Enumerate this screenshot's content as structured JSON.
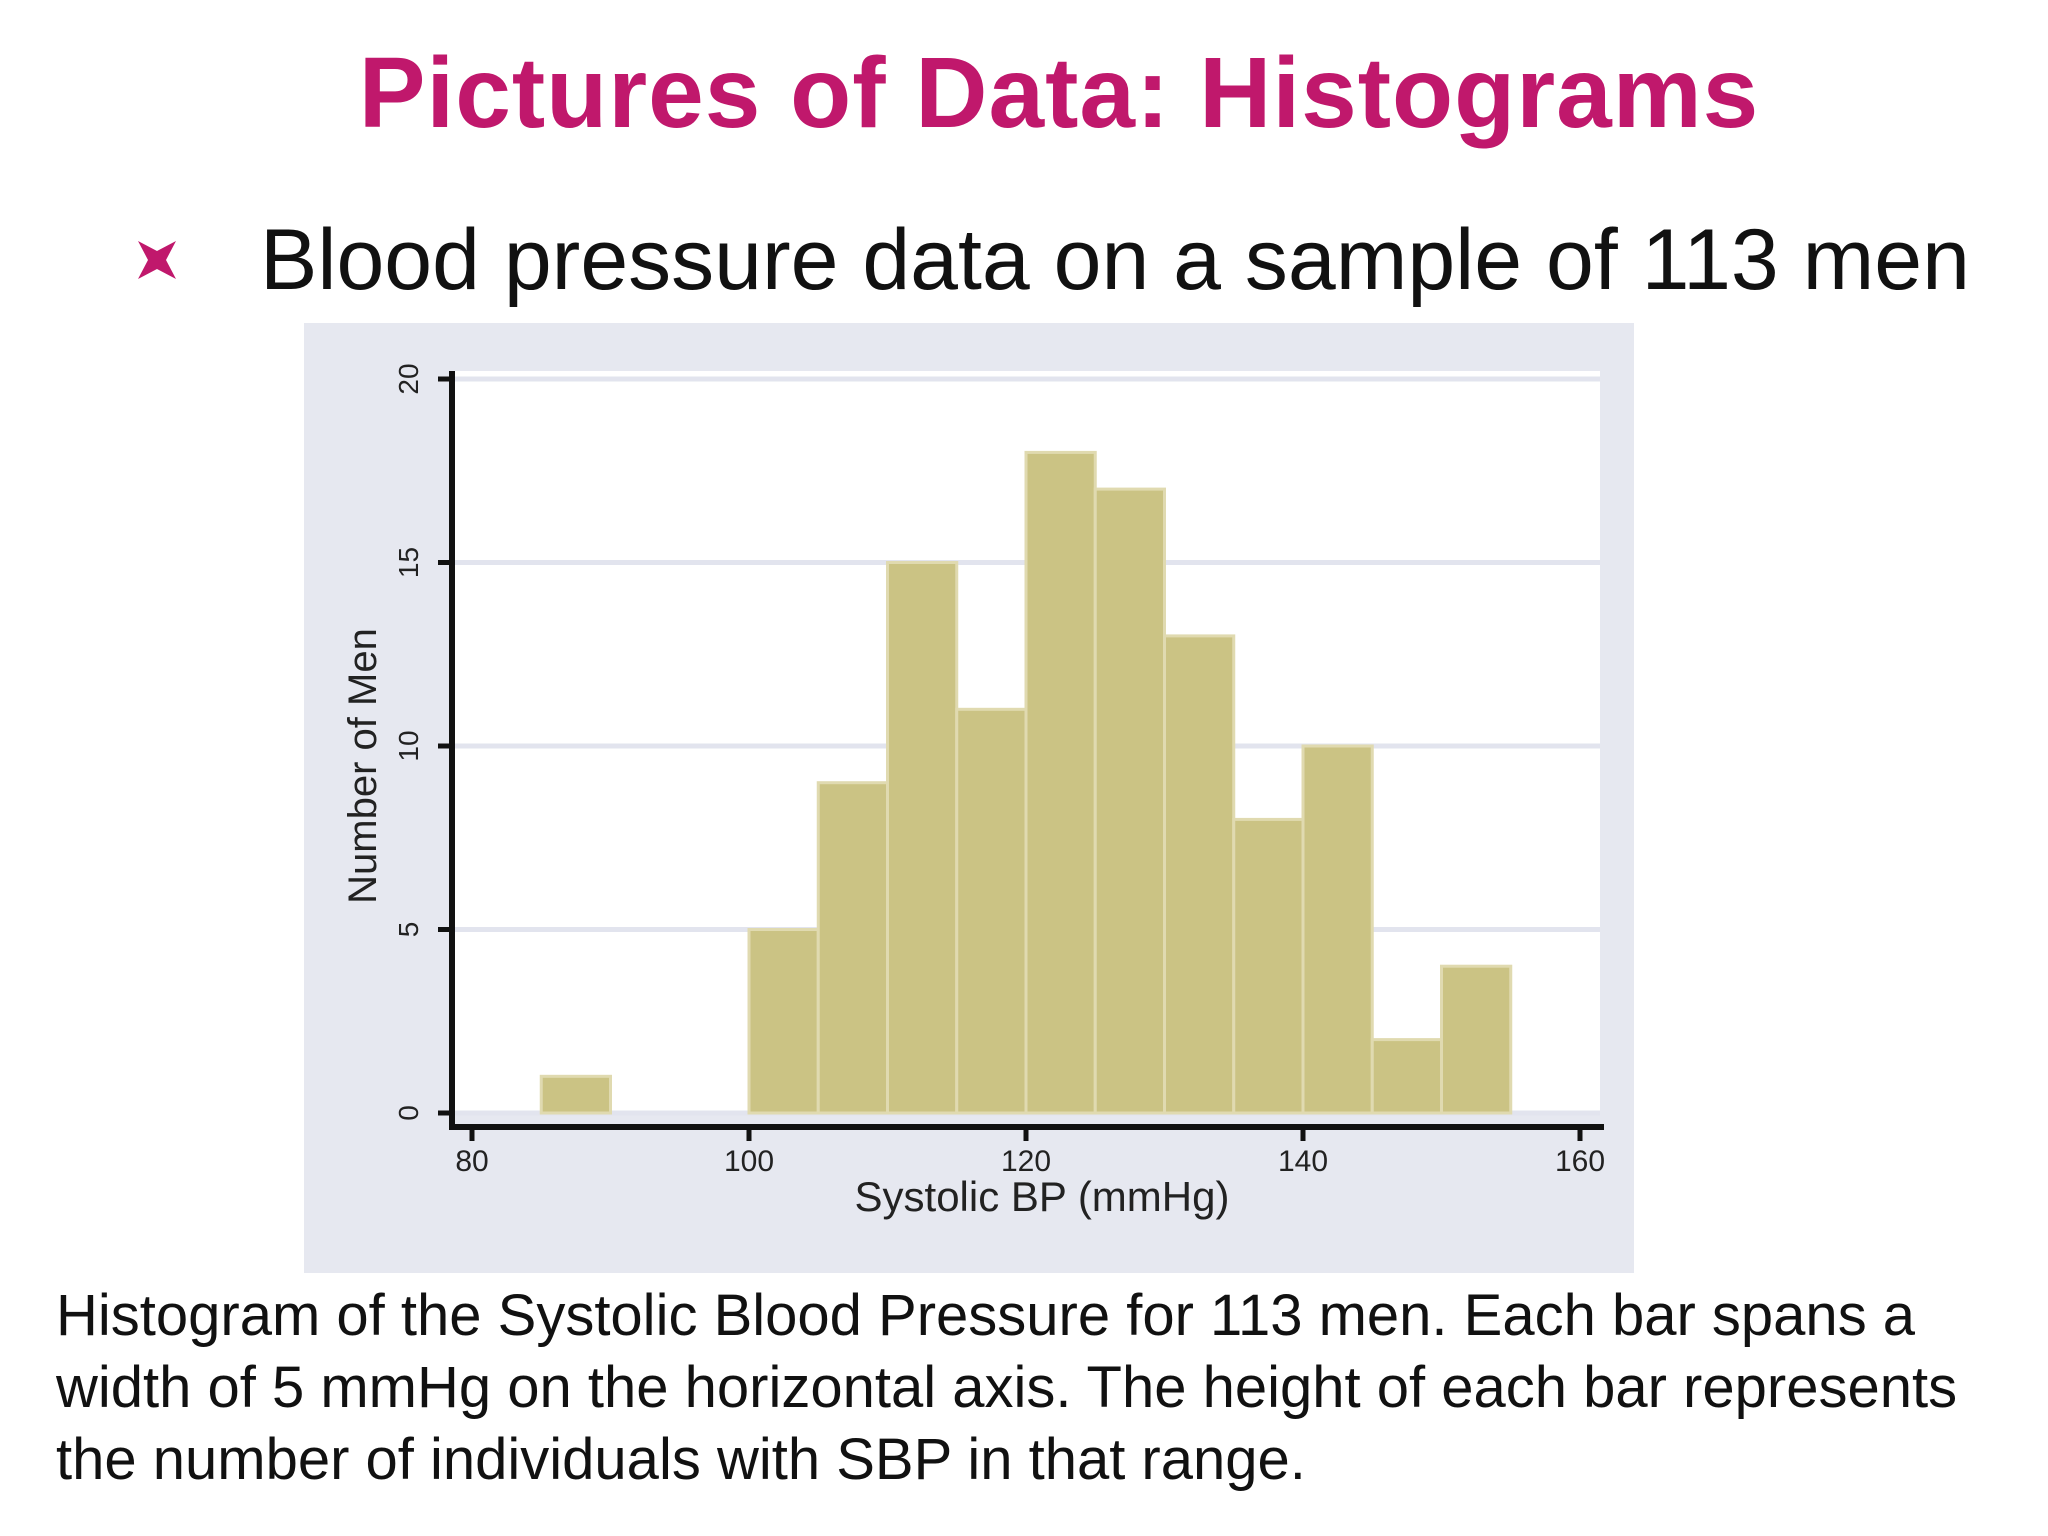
{
  "slide": {
    "title": "Pictures of Data: Histograms",
    "bullet": "Blood pressure data on a sample of 113 men",
    "caption": "Histogram of the Systolic Blood Pressure for 113 men.  Each bar spans a width of 5 mmHg on the horizontal axis. The height of each bar represents the number of individuals with SBP in that range."
  },
  "colors": {
    "title": "#c0186c",
    "bullet": "#c0186c",
    "panel": "#e6e8f0",
    "plot": "#ffffff",
    "bar": "#cbc384",
    "bar_edge": "#e0dab0",
    "grid": "#e2e4ee",
    "axis": "#111111"
  },
  "chart_data": {
    "type": "bar",
    "title": "",
    "xlabel": "Systolic BP (mmHg)",
    "ylabel": "Number of Men",
    "xlim": [
      80,
      160
    ],
    "ylim": [
      0,
      20
    ],
    "xticks": [
      80,
      100,
      120,
      140,
      160
    ],
    "yticks": [
      0,
      5,
      10,
      15,
      20
    ],
    "grid": true,
    "bin_width": 5,
    "bins": [
      {
        "start": 85,
        "end": 90,
        "count": 1
      },
      {
        "start": 100,
        "end": 105,
        "count": 5
      },
      {
        "start": 105,
        "end": 110,
        "count": 9
      },
      {
        "start": 110,
        "end": 115,
        "count": 15
      },
      {
        "start": 115,
        "end": 120,
        "count": 11
      },
      {
        "start": 120,
        "end": 125,
        "count": 18
      },
      {
        "start": 125,
        "end": 130,
        "count": 17
      },
      {
        "start": 130,
        "end": 135,
        "count": 13
      },
      {
        "start": 135,
        "end": 140,
        "count": 8
      },
      {
        "start": 140,
        "end": 145,
        "count": 10
      },
      {
        "start": 145,
        "end": 150,
        "count": 2
      },
      {
        "start": 150,
        "end": 155,
        "count": 4
      }
    ]
  }
}
